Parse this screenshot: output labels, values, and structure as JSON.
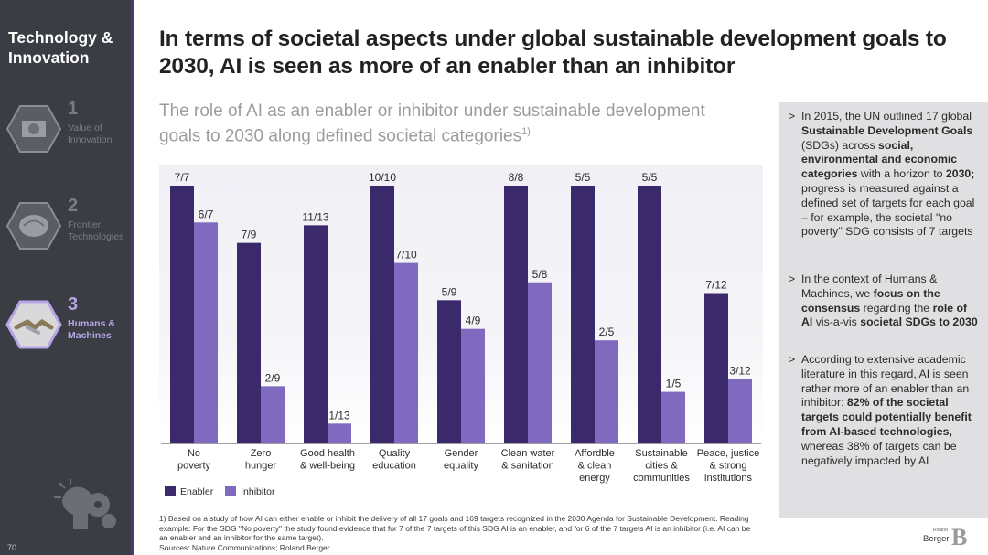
{
  "sidebar": {
    "title": "Technology & Innovation",
    "items": [
      {
        "number": "1",
        "label": "Value of Innovation",
        "active": false
      },
      {
        "number": "2",
        "label": "Frontier Technologies",
        "active": false
      },
      {
        "number": "3",
        "label": "Humans & Machines",
        "active": true
      }
    ],
    "page_number": "70"
  },
  "title": "In terms of societal aspects under global sustainable development goals to 2030, AI is seen as more of an enabler than an inhibitor",
  "subtitle": "The role of AI as an enabler or inhibitor under sustainable development goals to 2030 along defined societal categories",
  "subtitle_footnote_mark": "1)",
  "chart_data": {
    "type": "bar",
    "categories": [
      "No poverty",
      "Zero hunger",
      "Good health & well-being",
      "Quality education",
      "Gender equality",
      "Clean water & sanitation",
      "Affordble & clean energy",
      "Sustainable cities & communities",
      "Peace, justice & strong institutions"
    ],
    "category_lines": [
      [
        "No",
        "poverty"
      ],
      [
        "Zero",
        "hunger"
      ],
      [
        "Good health",
        "& well-being"
      ],
      [
        "Quality",
        "education"
      ],
      [
        "Gender",
        "equality"
      ],
      [
        "Clean water",
        "& sanitation"
      ],
      [
        "Affordble",
        "& clean",
        "energy"
      ],
      [
        "Sustainable",
        "cities &",
        "communities"
      ],
      [
        "Peace, justice",
        "& strong",
        "institutions"
      ]
    ],
    "series": [
      {
        "name": "Enabler",
        "color": "#3b2a6b",
        "labels": [
          "7/7",
          "7/9",
          "11/13",
          "10/10",
          "5/9",
          "8/8",
          "5/5",
          "5/5",
          "7/12"
        ],
        "values": [
          1.0,
          0.7778,
          0.8462,
          1.0,
          0.5556,
          1.0,
          1.0,
          1.0,
          0.5833
        ]
      },
      {
        "name": "Inhibitor",
        "color": "#7f6ac0",
        "labels": [
          "6/7",
          "2/9",
          "1/13",
          "7/10",
          "4/9",
          "5/8",
          "2/5",
          "1/5",
          "3/12"
        ],
        "values": [
          0.8571,
          0.2222,
          0.0769,
          0.7,
          0.4444,
          0.625,
          0.4,
          0.2,
          0.25
        ]
      }
    ],
    "ylim": [
      0,
      1
    ],
    "legend": "bottom-left",
    "grid": false
  },
  "info_panel": {
    "bullets": [
      [
        {
          "t": "In 2015, the UN outlined 17 global ",
          "b": false
        },
        {
          "t": "Sustainable Development Goals",
          "b": true
        },
        {
          "t": " (SDGs) across ",
          "b": false
        },
        {
          "t": "social, environmental and economic categories",
          "b": true
        },
        {
          "t": " with a horizon to ",
          "b": false
        },
        {
          "t": "2030;",
          "b": true
        },
        {
          "t": " progress is measured against a defined set of targets for each goal – for example, the societal \"no poverty\" SDG consists of 7 targets",
          "b": false
        }
      ],
      [
        {
          "t": "In the context of Humans & Machines, we ",
          "b": false
        },
        {
          "t": "focus on the consensus",
          "b": true
        },
        {
          "t": " regarding the ",
          "b": false
        },
        {
          "t": "role of AI",
          "b": true
        },
        {
          "t": " vis-a-vis ",
          "b": false
        },
        {
          "t": "societal SDGs to 2030",
          "b": true
        }
      ],
      [
        {
          "t": "According to extensive academic literature in this regard, AI is seen rather more of an enabler than an inhibitor: ",
          "b": false
        },
        {
          "t": "82% of the societal targets could potentially benefit from AI-based technologies,",
          "b": true
        },
        {
          "t": " whereas 38% of targets can be negatively impacted by AI",
          "b": false
        }
      ]
    ],
    "bullet_marker": ">"
  },
  "footnote": "1) Based on a study of how AI can either enable or inhibit the delivery of all 17 goals and 169 targets recognized in the 2030 Agenda for Sustainable Development. Reading example: For the SDG \"No poverty\" the study found evidence that for 7 of the 7 targets of this SDG AI is an enabler, and for 6 of the 7 targets AI is an inhibitor (i.e. AI can be an enabler and an inhibitor for the same target).",
  "sources": "Sources: Nature Communications; Roland Berger",
  "logo": {
    "small": "Roland",
    "word": "Berger",
    "mark": "B"
  }
}
